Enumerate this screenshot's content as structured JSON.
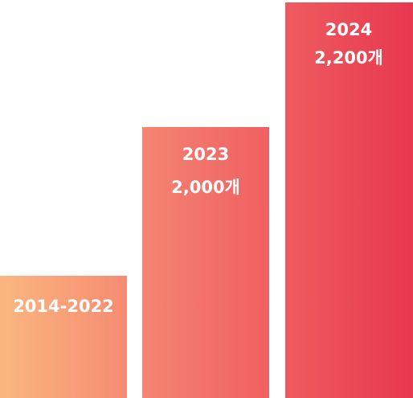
{
  "bars": [
    {
      "label": "2014-2022"
    },
    {
      "label": "2023",
      "count": "2,000개"
    },
    {
      "label": "2024",
      "count": "2,200개"
    }
  ]
}
